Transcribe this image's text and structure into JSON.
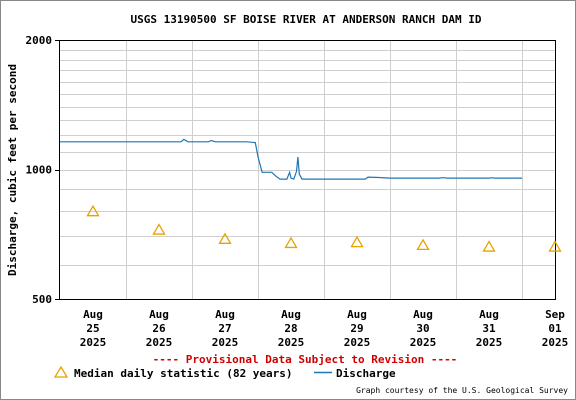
{
  "chart_data": {
    "type": "line",
    "title": "USGS 13190500 SF BOISE RIVER AT ANDERSON RANCH DAM ID",
    "ylabel": "Discharge, cubic feet per second",
    "xlabel": "",
    "y_scale": "log",
    "ylim": [
      500,
      2000
    ],
    "y_ticks": [
      {
        "value": 500,
        "label": "500"
      },
      {
        "value": 1000,
        "label": "1000"
      },
      {
        "value": 2000,
        "label": "2000"
      }
    ],
    "x_range": [
      "2025-08-25T00:00",
      "2025-09-01T12:00"
    ],
    "x_ticks": [
      {
        "x": "2025-08-25T12:00",
        "lines": [
          "Aug",
          "25",
          "2025"
        ]
      },
      {
        "x": "2025-08-26T12:00",
        "lines": [
          "Aug",
          "26",
          "2025"
        ]
      },
      {
        "x": "2025-08-27T12:00",
        "lines": [
          "Aug",
          "27",
          "2025"
        ]
      },
      {
        "x": "2025-08-28T12:00",
        "lines": [
          "Aug",
          "28",
          "2025"
        ]
      },
      {
        "x": "2025-08-29T12:00",
        "lines": [
          "Aug",
          "29",
          "2025"
        ]
      },
      {
        "x": "2025-08-30T12:00",
        "lines": [
          "Aug",
          "30",
          "2025"
        ]
      },
      {
        "x": "2025-08-31T12:00",
        "lines": [
          "Aug",
          "31",
          "2025"
        ]
      },
      {
        "x": "2025-09-01T12:00",
        "lines": [
          "Sep",
          "01",
          "2025"
        ]
      }
    ],
    "grid": true,
    "legend_position": "bottom",
    "series": [
      {
        "name": "Discharge",
        "kind": "line",
        "color": "#1f77b4",
        "points": [
          [
            "2025-08-25T00:00",
            1160
          ],
          [
            "2025-08-26T20:00",
            1160
          ],
          [
            "2025-08-26T21:00",
            1175
          ],
          [
            "2025-08-26T22:30",
            1160
          ],
          [
            "2025-08-27T06:00",
            1160
          ],
          [
            "2025-08-27T07:00",
            1168
          ],
          [
            "2025-08-27T08:30",
            1160
          ],
          [
            "2025-08-27T20:00",
            1160
          ],
          [
            "2025-08-27T23:00",
            1155
          ],
          [
            "2025-08-28T00:00",
            1070
          ],
          [
            "2025-08-28T01:30",
            985
          ],
          [
            "2025-08-28T05:00",
            985
          ],
          [
            "2025-08-28T06:30",
            965
          ],
          [
            "2025-08-28T08:00",
            950
          ],
          [
            "2025-08-28T10:30",
            950
          ],
          [
            "2025-08-28T11:30",
            985
          ],
          [
            "2025-08-28T12:00",
            955
          ],
          [
            "2025-08-28T13:00",
            950
          ],
          [
            "2025-08-28T14:00",
            990
          ],
          [
            "2025-08-28T14:30",
            1070
          ],
          [
            "2025-08-28T15:00",
            975
          ],
          [
            "2025-08-28T16:00",
            950
          ],
          [
            "2025-08-29T15:00",
            950
          ],
          [
            "2025-08-29T16:00",
            960
          ],
          [
            "2025-08-29T20:00",
            958
          ],
          [
            "2025-08-30T00:00",
            955
          ],
          [
            "2025-08-30T18:00",
            955
          ],
          [
            "2025-08-30T19:00",
            957
          ],
          [
            "2025-08-30T21:00",
            955
          ],
          [
            "2025-08-31T12:00",
            955
          ],
          [
            "2025-08-31T13:00",
            957
          ],
          [
            "2025-08-31T14:00",
            955
          ],
          [
            "2025-09-01T00:00",
            955
          ]
        ]
      },
      {
        "name": "Median daily statistic (82 years)",
        "kind": "marker",
        "marker": "triangle",
        "color": "#e8a200",
        "points": [
          [
            "2025-08-25T12:00",
            800
          ],
          [
            "2025-08-26T12:00",
            725
          ],
          [
            "2025-08-27T12:00",
            690
          ],
          [
            "2025-08-28T12:00",
            675
          ],
          [
            "2025-08-29T12:00",
            678
          ],
          [
            "2025-08-30T12:00",
            668
          ],
          [
            "2025-08-31T12:00",
            662
          ],
          [
            "2025-09-01T12:00",
            662
          ]
        ]
      }
    ],
    "annotations": {
      "provisional": "---- Provisional Data Subject to Revision ----",
      "credit": "Graph courtesy of the U.S. Geological Survey"
    },
    "legend": {
      "median_label": "Median daily statistic (82 years)",
      "discharge_label": "Discharge"
    }
  }
}
